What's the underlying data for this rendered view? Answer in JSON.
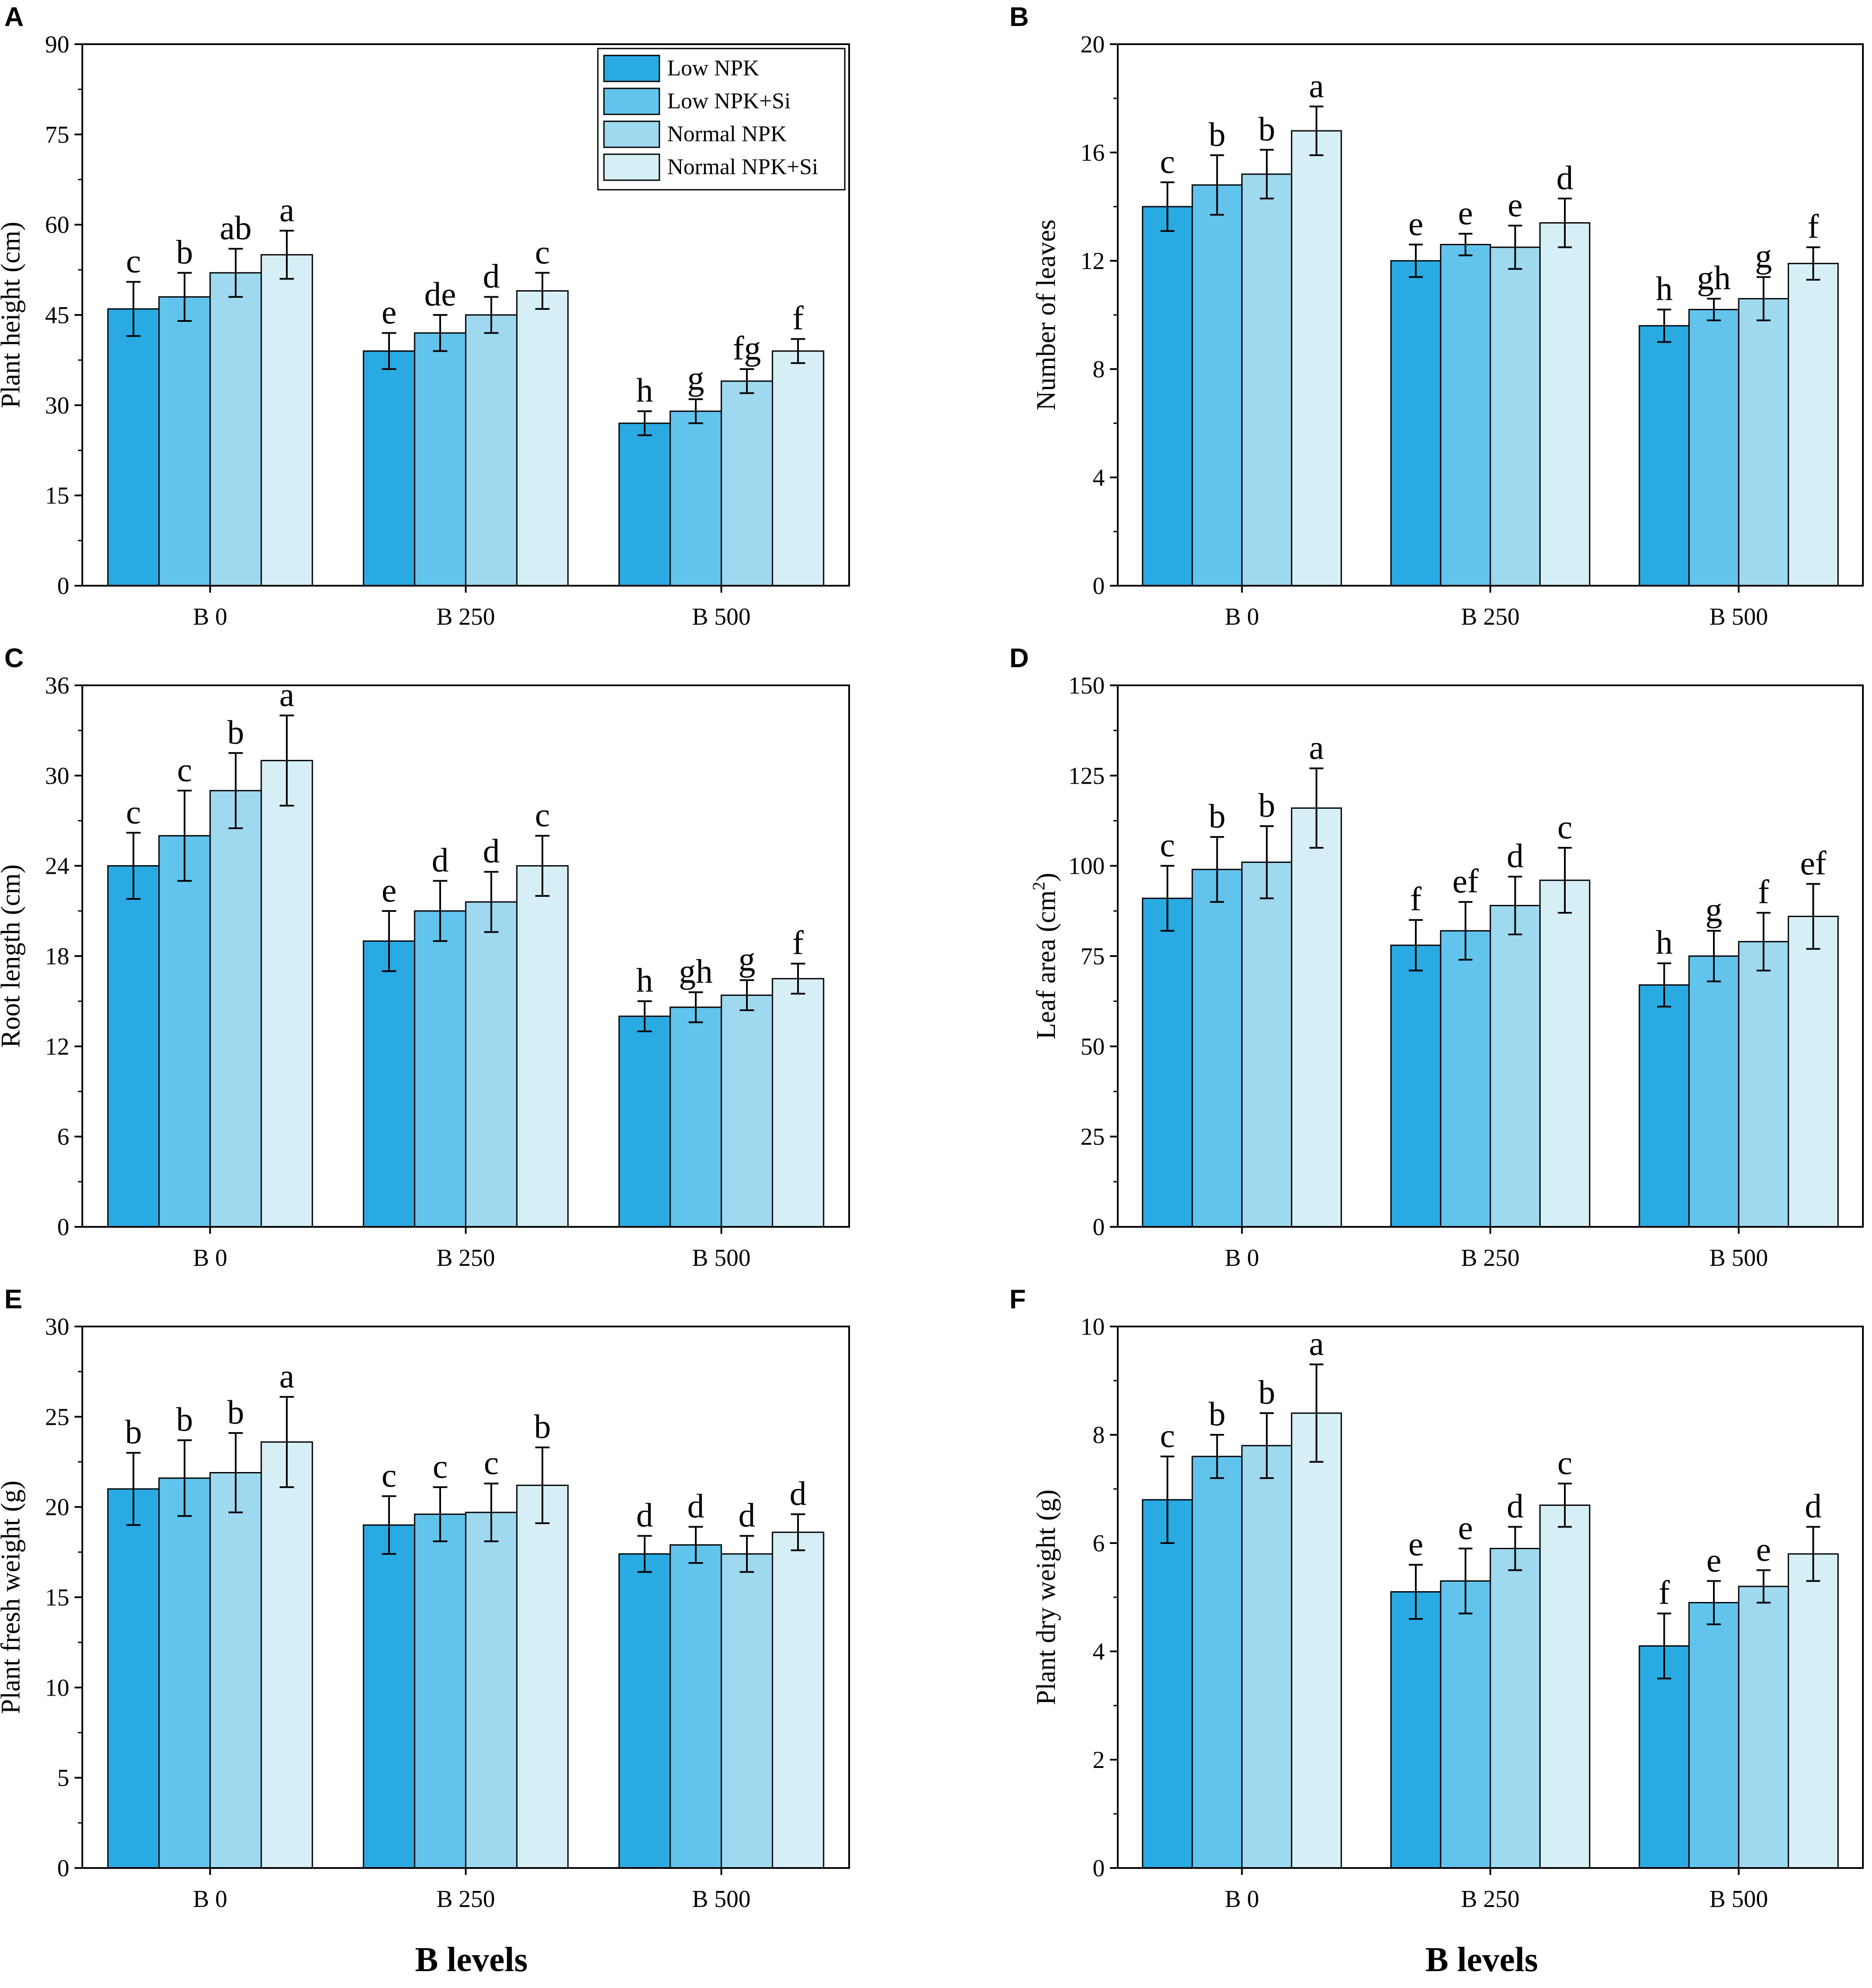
{
  "figure_xlabel": "B levels",
  "legend": [
    "Low NPK",
    "Low NPK+Si",
    "Normal NPK",
    "Normal NPK+Si"
  ],
  "colors": {
    "series": [
      "#29aae3",
      "#62c3ec",
      "#9fd9f0",
      "#d6eef6"
    ],
    "axis": "#000000"
  },
  "chart_data": [
    {
      "panel": "A",
      "type": "bar",
      "ylabel": "Plant height (cm)",
      "categories": [
        "B 0",
        "B 250",
        "B 500"
      ],
      "ylim": [
        0,
        90
      ],
      "yticks": [
        "0",
        "15",
        "30",
        "45",
        "60",
        "75",
        "90"
      ],
      "series": [
        {
          "name": "Low NPK",
          "values": [
            46,
            39,
            27
          ],
          "errors": [
            4.5,
            3,
            2
          ],
          "letters": [
            "c",
            "e",
            "h"
          ]
        },
        {
          "name": "Low NPK+Si",
          "values": [
            48,
            42,
            29
          ],
          "errors": [
            4,
            3,
            2
          ],
          "letters": [
            "b",
            "de",
            "g"
          ]
        },
        {
          "name": "Normal NPK",
          "values": [
            52,
            45,
            34
          ],
          "errors": [
            4,
            3,
            2
          ],
          "letters": [
            "ab",
            "d",
            "fg"
          ]
        },
        {
          "name": "Normal NPK+Si",
          "values": [
            55,
            49,
            39
          ],
          "errors": [
            4,
            3,
            2
          ],
          "letters": [
            "a",
            "c",
            "f"
          ]
        }
      ]
    },
    {
      "panel": "B",
      "type": "bar",
      "ylabel": "Number of leaves",
      "categories": [
        "B 0",
        "B 250",
        "B 500"
      ],
      "ylim": [
        0,
        20
      ],
      "yticks": [
        "0",
        "4",
        "8",
        "12",
        "16",
        "20"
      ],
      "series": [
        {
          "name": "Low NPK",
          "values": [
            14.0,
            12.0,
            9.6
          ],
          "errors": [
            0.9,
            0.6,
            0.6
          ],
          "letters": [
            "c",
            "e",
            "h"
          ]
        },
        {
          "name": "Low NPK+Si",
          "values": [
            14.8,
            12.6,
            10.2
          ],
          "errors": [
            1.1,
            0.4,
            0.4
          ],
          "letters": [
            "b",
            "e",
            "gh"
          ]
        },
        {
          "name": "Normal NPK",
          "values": [
            15.2,
            12.5,
            10.6
          ],
          "errors": [
            0.9,
            0.8,
            0.8
          ],
          "letters": [
            "b",
            "e",
            "g"
          ]
        },
        {
          "name": "Normal NPK+Si",
          "values": [
            16.8,
            13.4,
            11.9
          ],
          "errors": [
            0.9,
            0.9,
            0.6
          ],
          "letters": [
            "a",
            "d",
            "f"
          ]
        }
      ]
    },
    {
      "panel": "C",
      "type": "bar",
      "ylabel": "Root length (cm)",
      "categories": [
        "B 0",
        "B 250",
        "B 500"
      ],
      "ylim": [
        0,
        36
      ],
      "yticks": [
        "0",
        "6",
        "12",
        "18",
        "24",
        "30",
        "36"
      ],
      "series": [
        {
          "name": "Low NPK",
          "values": [
            24,
            19,
            14
          ],
          "errors": [
            2.2,
            2,
            1
          ],
          "letters": [
            "c",
            "e",
            "h"
          ]
        },
        {
          "name": "Low NPK+Si",
          "values": [
            26,
            21,
            14.6
          ],
          "errors": [
            3,
            2,
            1
          ],
          "letters": [
            "c",
            "d",
            "gh"
          ]
        },
        {
          "name": "Normal NPK",
          "values": [
            29,
            21.6,
            15.4
          ],
          "errors": [
            2.5,
            2,
            1
          ],
          "letters": [
            "b",
            "d",
            "g"
          ]
        },
        {
          "name": "Normal NPK+Si",
          "values": [
            31,
            24,
            16.5
          ],
          "errors": [
            3,
            2,
            1
          ],
          "letters": [
            "a",
            "c",
            "f"
          ]
        }
      ]
    },
    {
      "panel": "D",
      "type": "bar",
      "ylabel": "Leaf area (cm²)",
      "ylabel_main": "Leaf area (cm",
      "ylabel_sup": "2",
      "ylabel_end": ")",
      "categories": [
        "B 0",
        "B 250",
        "B 500"
      ],
      "ylim": [
        0,
        150
      ],
      "yticks": [
        "0",
        "25",
        "50",
        "75",
        "100",
        "125",
        "150"
      ],
      "series": [
        {
          "name": "Low NPK",
          "values": [
            91,
            78,
            67
          ],
          "errors": [
            9,
            7,
            6
          ],
          "letters": [
            "c",
            "f",
            "h"
          ]
        },
        {
          "name": "Low NPK+Si",
          "values": [
            99,
            82,
            75
          ],
          "errors": [
            9,
            8,
            7
          ],
          "letters": [
            "b",
            "ef",
            "g"
          ]
        },
        {
          "name": "Normal NPK",
          "values": [
            101,
            89,
            79
          ],
          "errors": [
            10,
            8,
            8
          ],
          "letters": [
            "b",
            "d",
            "f"
          ]
        },
        {
          "name": "Normal NPK+Si",
          "values": [
            116,
            96,
            86
          ],
          "errors": [
            11,
            9,
            9
          ],
          "letters": [
            "a",
            "c",
            "ef"
          ]
        }
      ]
    },
    {
      "panel": "E",
      "type": "bar",
      "ylabel": "Plant fresh weight (g)",
      "categories": [
        "B 0",
        "B 250",
        "B 500"
      ],
      "ylim": [
        0,
        30
      ],
      "yticks": [
        "0",
        "5",
        "10",
        "15",
        "20",
        "25",
        "30"
      ],
      "series": [
        {
          "name": "Low NPK",
          "values": [
            21.0,
            19.0,
            17.4
          ],
          "errors": [
            2.0,
            1.6,
            1.0
          ],
          "letters": [
            "b",
            "c",
            "d"
          ]
        },
        {
          "name": "Low NPK+Si",
          "values": [
            21.6,
            19.6,
            17.9
          ],
          "errors": [
            2.1,
            1.5,
            1.0
          ],
          "letters": [
            "b",
            "c",
            "d"
          ]
        },
        {
          "name": "Normal NPK",
          "values": [
            21.9,
            19.7,
            17.4
          ],
          "errors": [
            2.2,
            1.6,
            1.0
          ],
          "letters": [
            "b",
            "c",
            "d"
          ]
        },
        {
          "name": "Normal NPK+Si",
          "values": [
            23.6,
            21.2,
            18.6
          ],
          "errors": [
            2.5,
            2.1,
            1.0
          ],
          "letters": [
            "a",
            "b",
            "d"
          ]
        }
      ]
    },
    {
      "panel": "F",
      "type": "bar",
      "ylabel": "Plant dry weight (g)",
      "categories": [
        "B 0",
        "B 250",
        "B 500"
      ],
      "ylim": [
        0,
        10
      ],
      "yticks": [
        "0",
        "2",
        "4",
        "6",
        "8",
        "10"
      ],
      "series": [
        {
          "name": "Low NPK",
          "values": [
            6.8,
            5.1,
            4.1
          ],
          "errors": [
            0.8,
            0.5,
            0.6
          ],
          "letters": [
            "c",
            "e",
            "f"
          ]
        },
        {
          "name": "Low NPK+Si",
          "values": [
            7.6,
            5.3,
            4.9
          ],
          "errors": [
            0.4,
            0.6,
            0.4
          ],
          "letters": [
            "b",
            "e",
            "e"
          ]
        },
        {
          "name": "Normal NPK",
          "values": [
            7.8,
            5.9,
            5.2
          ],
          "errors": [
            0.6,
            0.4,
            0.3
          ],
          "letters": [
            "b",
            "d",
            "e"
          ]
        },
        {
          "name": "Normal NPK+Si",
          "values": [
            8.4,
            6.7,
            5.8
          ],
          "errors": [
            0.9,
            0.4,
            0.5
          ],
          "letters": [
            "a",
            "c",
            "d"
          ]
        }
      ]
    }
  ]
}
